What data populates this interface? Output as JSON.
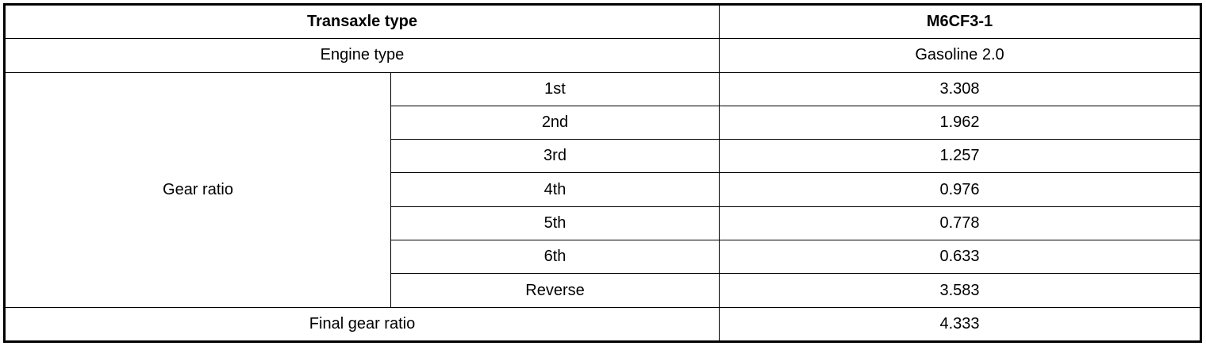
{
  "header": {
    "label": "Transaxle type",
    "value": "M6CF3-1"
  },
  "engine": {
    "label": "Engine type",
    "value": "Gasoline 2.0"
  },
  "gear_ratio": {
    "label": "Gear ratio",
    "rows": [
      {
        "gear": "1st",
        "value": "3.308"
      },
      {
        "gear": "2nd",
        "value": "1.962"
      },
      {
        "gear": "3rd",
        "value": "1.257"
      },
      {
        "gear": "4th",
        "value": "0.976"
      },
      {
        "gear": "5th",
        "value": "0.778"
      },
      {
        "gear": "6th",
        "value": "0.633"
      },
      {
        "gear": "Reverse",
        "value": "3.583"
      }
    ]
  },
  "final": {
    "label": "Final gear ratio",
    "value": "4.333"
  }
}
